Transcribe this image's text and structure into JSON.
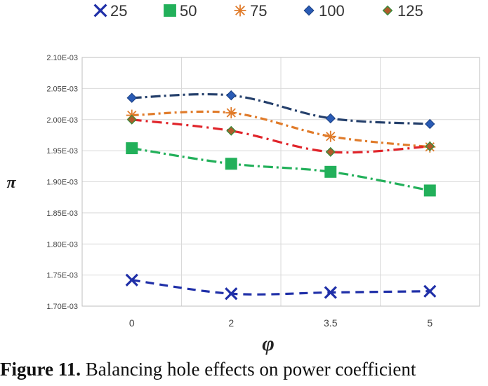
{
  "chart_data": {
    "type": "line",
    "x": [
      "0",
      "2",
      "3.5",
      "5"
    ],
    "xlabel": "φ",
    "ylabel": "π",
    "ylim": [
      0.0017,
      0.0021
    ],
    "y_ticks": [
      "1.70E-03",
      "1.75E-03",
      "1.80E-03",
      "1.85E-03",
      "1.90E-03",
      "1.95E-03",
      "2.00E-03",
      "2.05E-03",
      "2.10E-03"
    ],
    "grid": true,
    "legend_position": "top",
    "series": [
      {
        "name": "25",
        "values": [
          0.001742,
          0.00172,
          0.001722,
          0.001724
        ],
        "color": "#1f2fa8",
        "marker": "x"
      },
      {
        "name": "50",
        "values": [
          0.001954,
          0.001929,
          0.001916,
          0.001886
        ],
        "color": "#22b05a",
        "marker": "square"
      },
      {
        "name": "75",
        "values": [
          0.002007,
          0.002011,
          0.001973,
          0.001956
        ],
        "color": "#e07b2a",
        "marker": "star"
      },
      {
        "name": "100",
        "values": [
          0.002035,
          0.002039,
          0.002002,
          0.001993
        ],
        "color": "#2a5bb5",
        "marker": "diamond"
      },
      {
        "name": "125",
        "values": [
          0.002,
          0.001982,
          0.001948,
          0.001957
        ],
        "color": "#e0242a",
        "marker": "diamond-small"
      }
    ]
  },
  "caption": {
    "label": "Figure 11.",
    "text": " Balancing hole effects on power coefficient"
  }
}
